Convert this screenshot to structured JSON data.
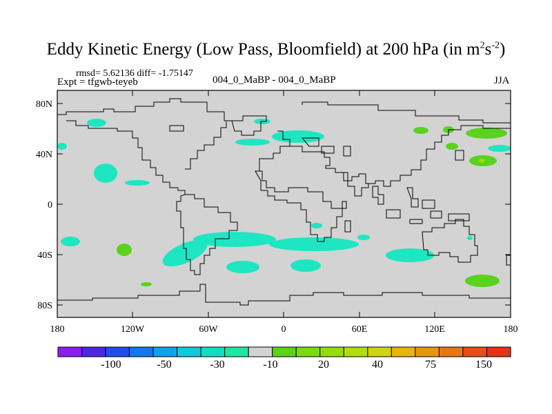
{
  "title": {
    "main": "Eddy Kinetic Energy (Low Pass, Bloomfield) at 200 hPa (in m",
    "sup1": "2",
    "mid": "s",
    "sup2": "-2",
    "end": ")"
  },
  "stats": "rmsd= 5.62136 diff= -1.75147",
  "expt_label": "Expt = tfgwb-teyeb",
  "center_label": "004_0_MaBP - 004_0_MaBP",
  "season": "JJA",
  "map": {
    "ocean_color": "#d3d3d3",
    "lat_ticks": [
      "80N",
      "40N",
      "0",
      "40S",
      "80S"
    ],
    "lon_ticks": [
      "180",
      "120W",
      "60W",
      "0",
      "60E",
      "120E",
      "180"
    ]
  },
  "colorbar": {
    "colors": [
      "#8a1ee6",
      "#5028dc",
      "#1f4fe0",
      "#1478e6",
      "#14a0e6",
      "#14c8dc",
      "#14dcc3",
      "#1ee6a0",
      "#d3d3d3",
      "#5ad21e",
      "#78dc14",
      "#96dc14",
      "#b4dc14",
      "#d2d214",
      "#e6b414",
      "#e69614",
      "#e67814",
      "#e65014",
      "#e63214"
    ],
    "labels": [
      "-100",
      "-50",
      "-30",
      "-10",
      "20",
      "40",
      "75",
      "150"
    ]
  },
  "chart_data": {
    "type": "filled-contour-map",
    "title": "Eddy Kinetic Energy (Low Pass, Bloomfield) at 200 hPa (in m2 s-2)",
    "field": "004_0_MaBP - 004_0_MaBP",
    "season": "JJA",
    "rmsd": 5.62136,
    "diff": -1.75147,
    "lon_range": [
      -180,
      180
    ],
    "lat_range": [
      -90,
      90
    ],
    "contour_levels_labeled": [
      -100,
      -50,
      -30,
      -10,
      20,
      40,
      75,
      150
    ]
  }
}
